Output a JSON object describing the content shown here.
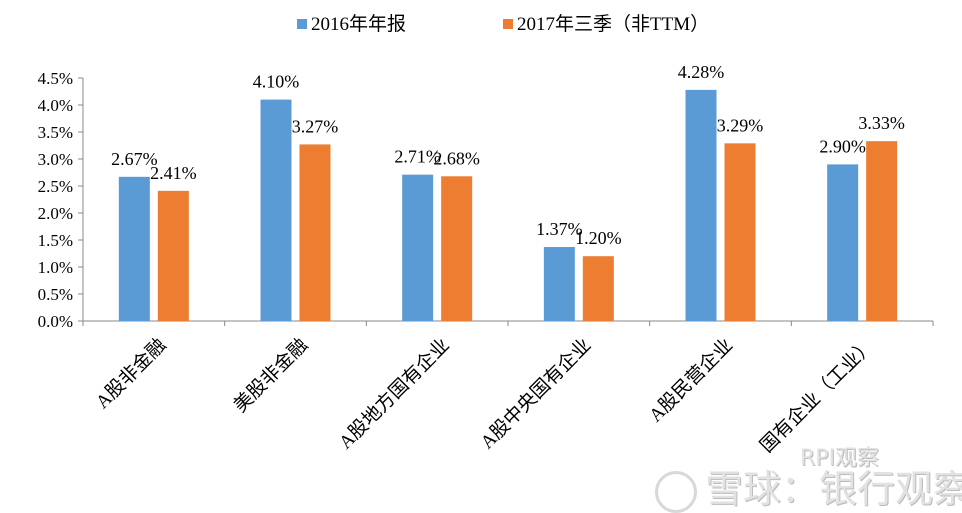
{
  "chart_data": {
    "type": "bar",
    "title": "",
    "xlabel": "",
    "ylabel": "",
    "ylim": [
      0,
      4.5
    ],
    "yticks": [
      "0.0%",
      "0.5%",
      "1.0%",
      "1.5%",
      "2.0%",
      "2.5%",
      "3.0%",
      "3.5%",
      "4.0%",
      "4.5%"
    ],
    "grid": false,
    "legend_position": "top-center",
    "categories": [
      "A股非金融",
      "美股非金融",
      "A股地方国有企业",
      "A股中央国有企业",
      "A股民营企业",
      "国有企业（工业）"
    ],
    "series": [
      {
        "name": "2016年年报",
        "color": "#5b9bd5",
        "values": [
          2.67,
          4.1,
          2.71,
          1.37,
          4.28,
          2.9
        ],
        "labels": [
          "2.67%",
          "4.10%",
          "2.71%",
          "1.37%",
          "4.28%",
          "2.90%"
        ]
      },
      {
        "name": "2017年三季（非TTM）",
        "color": "#ed7d31",
        "values": [
          2.41,
          3.27,
          2.68,
          1.2,
          3.29,
          3.33
        ],
        "labels": [
          "2.41%",
          "3.27%",
          "2.68%",
          "1.20%",
          "3.29%",
          "3.33%"
        ]
      }
    ]
  },
  "watermark": {
    "main": "雪球：银行观察",
    "sub": "RPI观察"
  }
}
